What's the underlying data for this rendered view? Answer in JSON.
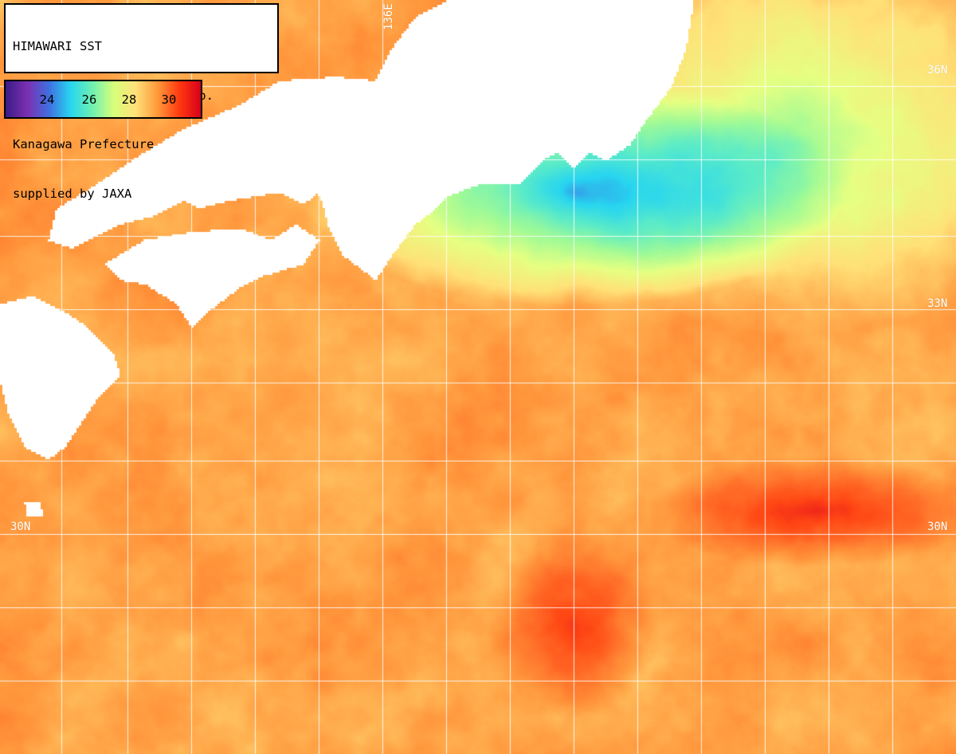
{
  "header": {
    "lines": [
      "HIMAWARI SST",
      "2025/08/20 05(UTC) 3H Comp.",
      "Kanagawa Prefecture",
      "supplied by JAXA"
    ]
  },
  "colorbar": {
    "ticks": [
      "24",
      "26",
      "28",
      "30"
    ],
    "stops": [
      "#3b1c86",
      "#7b2fb0",
      "#3f6fe0",
      "#27d5f0",
      "#6ff0b0",
      "#d8ff7a",
      "#ffe07a",
      "#ff9a3a",
      "#ff3a10",
      "#d8001a"
    ]
  },
  "grid_labels": {
    "lat_33": "33N",
    "lat_30": "30N",
    "lat_36": "36N",
    "lon_136": "136E"
  },
  "colors": {
    "land": "#ffffff",
    "cloud": "#000000",
    "grid": "#ffffff"
  }
}
